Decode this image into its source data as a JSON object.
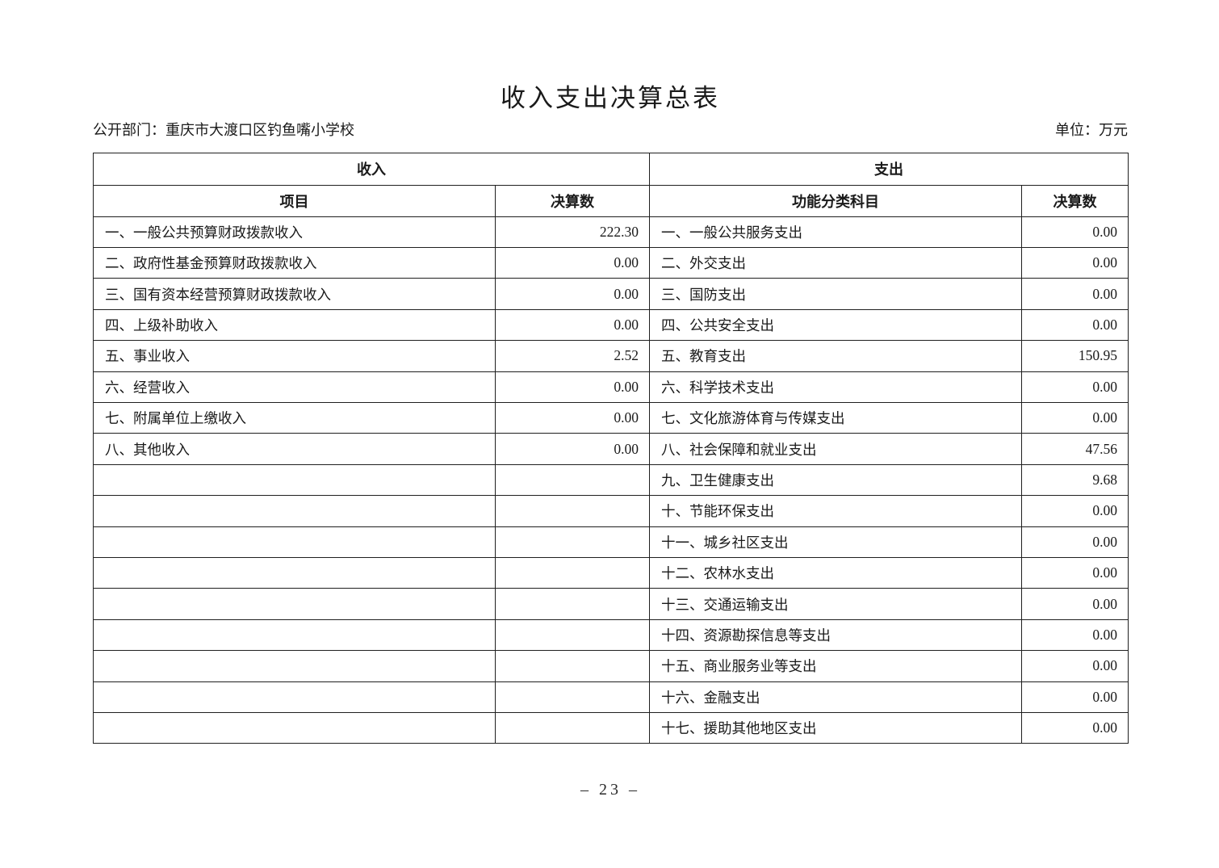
{
  "page": {
    "title": "收入支出决算总表",
    "department_label": "公开部门：",
    "department_value": "重庆市大渡口区钓鱼嘴小学校",
    "unit_label": "单位：万元",
    "page_number": "– 23 –"
  },
  "colors": {
    "border": "#1f1f1f",
    "text": "#1a1a1a",
    "background": "#ffffff"
  },
  "table": {
    "income_header": "收入",
    "expense_header": "支出",
    "columns": {
      "income_item": "项目",
      "income_amount": "决算数",
      "expense_item": "功能分类科目",
      "expense_amount": "决算数"
    },
    "rows": [
      {
        "income_item": "一、一般公共预算财政拨款收入",
        "income_amount": "222.30",
        "expense_item": "一、一般公共服务支出",
        "expense_amount": "0.00"
      },
      {
        "income_item": "二、政府性基金预算财政拨款收入",
        "income_amount": "0.00",
        "expense_item": "二、外交支出",
        "expense_amount": "0.00"
      },
      {
        "income_item": "三、国有资本经营预算财政拨款收入",
        "income_amount": "0.00",
        "expense_item": "三、国防支出",
        "expense_amount": "0.00"
      },
      {
        "income_item": "四、上级补助收入",
        "income_amount": "0.00",
        "expense_item": "四、公共安全支出",
        "expense_amount": "0.00"
      },
      {
        "income_item": "五、事业收入",
        "income_amount": "2.52",
        "expense_item": "五、教育支出",
        "expense_amount": "150.95"
      },
      {
        "income_item": "六、经营收入",
        "income_amount": "0.00",
        "expense_item": "六、科学技术支出",
        "expense_amount": "0.00"
      },
      {
        "income_item": "七、附属单位上缴收入",
        "income_amount": "0.00",
        "expense_item": "七、文化旅游体育与传媒支出",
        "expense_amount": "0.00"
      },
      {
        "income_item": "八、其他收入",
        "income_amount": "0.00",
        "expense_item": "八、社会保障和就业支出",
        "expense_amount": "47.56"
      },
      {
        "income_item": "",
        "income_amount": "",
        "expense_item": "九、卫生健康支出",
        "expense_amount": "9.68"
      },
      {
        "income_item": "",
        "income_amount": "",
        "expense_item": "十、节能环保支出",
        "expense_amount": "0.00"
      },
      {
        "income_item": "",
        "income_amount": "",
        "expense_item": "十一、城乡社区支出",
        "expense_amount": "0.00"
      },
      {
        "income_item": "",
        "income_amount": "",
        "expense_item": "十二、农林水支出",
        "expense_amount": "0.00"
      },
      {
        "income_item": "",
        "income_amount": "",
        "expense_item": "十三、交通运输支出",
        "expense_amount": "0.00"
      },
      {
        "income_item": "",
        "income_amount": "",
        "expense_item": "十四、资源勘探信息等支出",
        "expense_amount": "0.00"
      },
      {
        "income_item": "",
        "income_amount": "",
        "expense_item": "十五、商业服务业等支出",
        "expense_amount": "0.00"
      },
      {
        "income_item": "",
        "income_amount": "",
        "expense_item": "十六、金融支出",
        "expense_amount": "0.00"
      },
      {
        "income_item": "",
        "income_amount": "",
        "expense_item": "十七、援助其他地区支出",
        "expense_amount": "0.00"
      }
    ]
  }
}
